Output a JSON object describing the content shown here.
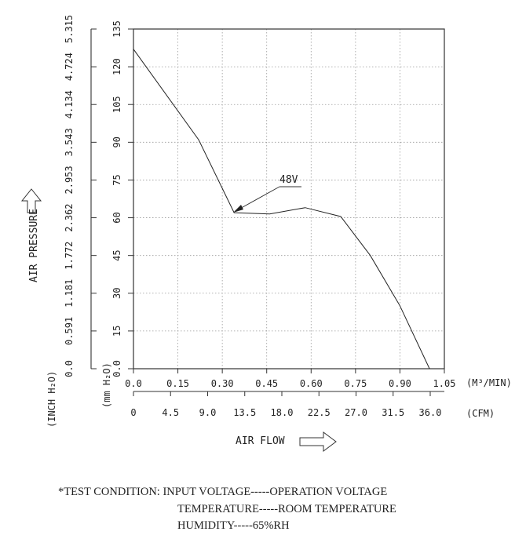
{
  "chart_data": {
    "type": "line",
    "series": [
      {
        "name": "48V",
        "x": [
          0.0,
          0.22,
          0.34,
          0.46,
          0.58,
          0.7,
          0.8,
          0.9,
          1.0
        ],
        "y": [
          127,
          91,
          62,
          61.5,
          64,
          60.5,
          45,
          25,
          0
        ]
      }
    ],
    "xlim": [
      0,
      1.05
    ],
    "ylim": [
      0,
      135
    ],
    "x_ticks": [
      "0.0",
      "0.15",
      "0.30",
      "0.45",
      "0.60",
      "0.75",
      "0.90",
      "1.05"
    ],
    "x_unit": "(M³/MIN)",
    "x2_ticks": [
      "0",
      "4.5",
      "9.0",
      "13.5",
      "18.0",
      "22.5",
      "27.0",
      "31.5",
      "36.0"
    ],
    "x2_unit": "(CFM)",
    "y_ticks": [
      "0.0",
      "15",
      "30",
      "45",
      "60",
      "75",
      "90",
      "105",
      "120",
      "135"
    ],
    "y_unit": "(mm H₂O)",
    "y2_ticks": [
      "0.0",
      "0.591",
      "1.181",
      "1.772",
      "2.362",
      "2.953",
      "3.543",
      "4.134",
      "4.724",
      "5.315"
    ],
    "y2_unit": "(INCH H₂O)",
    "xlabel": "AIR FLOW",
    "ylabel": "AIR PRESSURE",
    "annotation": "48V",
    "grid": true
  },
  "test_condition": {
    "line1": "*TEST CONDITION: INPUT VOLTAGE-----OPERATION VOLTAGE",
    "line2": "TEMPERATURE-----ROOM TEMPERATURE",
    "line3": "HUMIDITY-----65%RH"
  }
}
